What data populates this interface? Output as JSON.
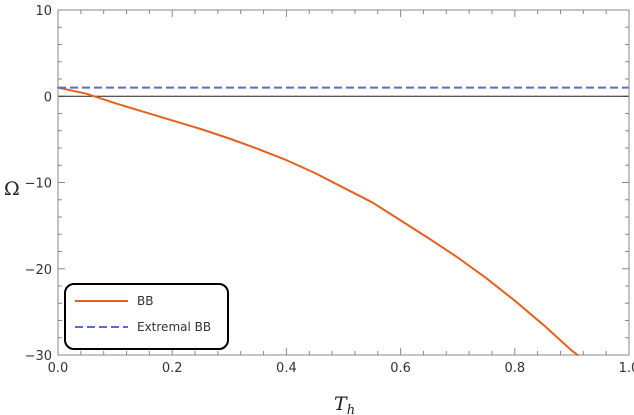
{
  "chart_data": {
    "type": "line",
    "xlabel_main": "T",
    "xlabel_sub": "h",
    "ylabel": "Ω",
    "xlim": [
      0,
      1
    ],
    "ylim": [
      -30,
      10
    ],
    "xticks": [
      "0.0",
      "0.2",
      "0.4",
      "0.6",
      "0.8",
      "1.0"
    ],
    "xtick_values": [
      0,
      0.2,
      0.4,
      0.6,
      0.8,
      1.0
    ],
    "yticks": [
      "10",
      "0",
      "−10",
      "−20",
      "−30"
    ],
    "ytick_values": [
      10,
      0,
      -10,
      -20,
      -30
    ],
    "grid": false,
    "legend_position": "bottom-left",
    "series": [
      {
        "name": "BB",
        "color": "#e5611f",
        "style": "solid",
        "x": [
          0.0,
          0.05,
          0.1,
          0.15,
          0.2,
          0.25,
          0.3,
          0.35,
          0.4,
          0.45,
          0.5,
          0.55,
          0.6,
          0.65,
          0.7,
          0.75,
          0.8,
          0.85,
          0.9,
          0.91
        ],
        "y": [
          1.0,
          0.3,
          -0.8,
          -1.8,
          -2.8,
          -3.8,
          -4.9,
          -6.1,
          -7.4,
          -8.9,
          -10.6,
          -12.3,
          -14.4,
          -16.5,
          -18.7,
          -21.1,
          -23.7,
          -26.5,
          -29.5,
          -30.0
        ]
      },
      {
        "name": "Extremal BB",
        "color": "#5b6fc7",
        "style": "dashed",
        "x": [
          0.0,
          1.0
        ],
        "y": [
          1.0,
          1.0
        ]
      }
    ]
  }
}
